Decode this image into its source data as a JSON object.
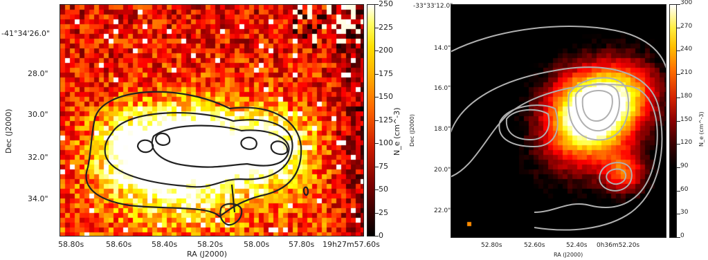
{
  "left_panel": {
    "dec_ticks": [
      "-41°34'26.0\"",
      "28.0\"",
      "30.0\"",
      "32.0\"",
      "34.0\""
    ],
    "ra_ticks": [
      "58.80s",
      "58.60s",
      "58.40s",
      "58.20s",
      "58.00s",
      "57.80s",
      "19h27m57.60s"
    ],
    "xlabel": "RA (J2000)",
    "ylabel": "Dec (J2000)",
    "colorbar": {
      "label": "N_e (cm^-3)",
      "ticks": [
        "250",
        "225",
        "200",
        "175",
        "150",
        "125",
        "100",
        "75",
        "50",
        "25",
        "0"
      ]
    },
    "contour_color": "#222222"
  },
  "right_panel": {
    "dec_ticks": [
      "-33°33'12.0\"",
      "14.0\"",
      "16.0\"",
      "18.0\"",
      "20.0\"",
      "22.0\""
    ],
    "ra_ticks": [
      "52.80s",
      "52.60s",
      "52.40s",
      "0h36m52.20s"
    ],
    "xlabel": "RA (J2000)",
    "ylabel": "Dec (J2000)",
    "colorbar": {
      "label": "N_e (cm^-3)",
      "ticks": [
        "300",
        "270",
        "240",
        "210",
        "180",
        "150",
        "120",
        "90",
        "60",
        "30",
        "0"
      ]
    },
    "contour_color": "#b0b0b0"
  },
  "colormap": "hot"
}
